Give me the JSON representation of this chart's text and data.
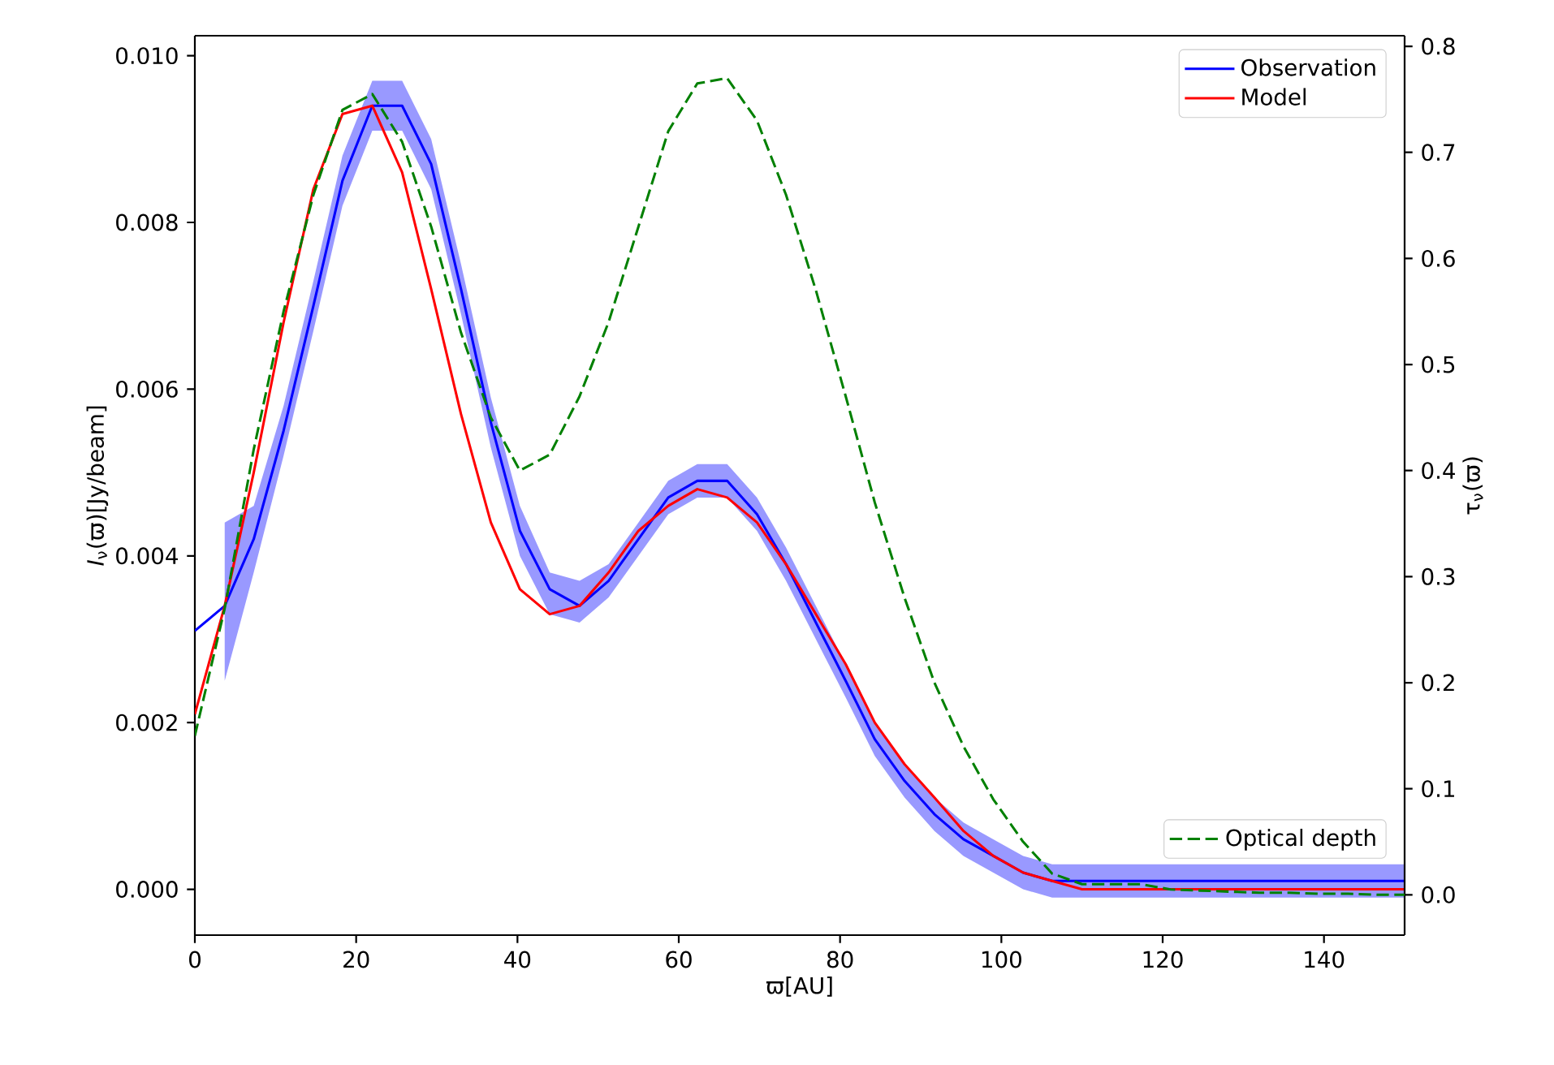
{
  "chart_data": {
    "type": "line",
    "xlabel": "ϖ[AU]",
    "ylabel": "*I*$_{ν}$(ϖ)[Jy/beam]",
    "y2label": "τ$_{ν}$(ϖ)",
    "x": [
      0,
      3.7,
      7.3,
      11,
      14.7,
      18.3,
      22,
      25.7,
      29.3,
      33,
      36.7,
      40.3,
      44,
      47.7,
      51.3,
      55,
      58.7,
      62.3,
      66,
      69.7,
      73.3,
      77,
      80.7,
      84.3,
      88,
      91.7,
      95.3,
      99,
      102.7,
      106.3,
      110,
      113.7,
      117.3,
      121,
      124.7,
      128.3,
      132,
      135.7,
      139.3,
      143,
      146.7,
      150
    ],
    "series": [
      {
        "name": "Observation",
        "color": "#0000ff",
        "line_style": "solid",
        "values": [
          0.0031,
          0.0034,
          0.0042,
          0.0055,
          0.007,
          0.0085,
          0.0094,
          0.0094,
          0.0087,
          0.0072,
          0.0056,
          0.0043,
          0.0036,
          0.0034,
          0.0037,
          0.0042,
          0.0047,
          0.0049,
          0.0049,
          0.0045,
          0.0039,
          0.0032,
          0.0025,
          0.0018,
          0.0013,
          0.0009,
          0.0006,
          0.0004,
          0.0002,
          0.0001,
          0.0001,
          0.0001,
          0.0001,
          0.0001,
          0.0001,
          0.0001,
          0.0001,
          0.0001,
          0.0001,
          0.0001,
          0.0001,
          0.0001
        ],
        "upper": [
          null,
          0.0044,
          0.0046,
          0.0058,
          0.0073,
          0.0088,
          0.0097,
          0.0097,
          0.009,
          0.0075,
          0.0059,
          0.0046,
          0.0038,
          0.0037,
          0.0039,
          0.0044,
          0.0049,
          0.0051,
          0.0051,
          0.0047,
          0.0041,
          0.0034,
          0.0027,
          0.002,
          0.0015,
          0.0011,
          0.0008,
          0.0006,
          0.0004,
          0.0003,
          0.0003,
          0.0003,
          0.0003,
          0.0003,
          0.0003,
          0.0003,
          0.0003,
          0.0003,
          0.0003,
          0.0003,
          0.0003,
          0.0003
        ],
        "lower": [
          null,
          0.0025,
          0.0038,
          0.0052,
          0.0067,
          0.0082,
          0.0091,
          0.0091,
          0.0084,
          0.0069,
          0.0053,
          0.004,
          0.0033,
          0.0032,
          0.0035,
          0.004,
          0.0045,
          0.0047,
          0.0047,
          0.0043,
          0.0037,
          0.003,
          0.0023,
          0.0016,
          0.0011,
          0.0007,
          0.0004,
          0.0002,
          0.0,
          -0.0001,
          -0.0001,
          -0.0001,
          -0.0001,
          -0.0001,
          -0.0001,
          -0.0001,
          -0.0001,
          -0.0001,
          -0.0001,
          -0.0001,
          -0.0001,
          -0.0001
        ]
      },
      {
        "name": "Model",
        "color": "#ff0000",
        "line_style": "solid",
        "values": [
          0.0021,
          0.0034,
          0.005,
          0.0068,
          0.0084,
          0.0093,
          0.0094,
          0.0086,
          0.0072,
          0.0057,
          0.0044,
          0.0036,
          0.0033,
          0.0034,
          0.0038,
          0.0043,
          0.0046,
          0.0048,
          0.0047,
          0.0044,
          0.0039,
          0.0033,
          0.0027,
          0.002,
          0.0015,
          0.0011,
          0.0007,
          0.0004,
          0.0002,
          0.0001,
          0.0,
          0.0,
          0.0,
          0.0,
          0.0,
          0.0,
          0.0,
          0.0,
          0.0,
          0.0,
          0.0,
          0.0
        ]
      },
      {
        "name": "Optical depth",
        "color": "#008000",
        "line_style": "dashed",
        "axis": "y2",
        "values": [
          0.15,
          0.27,
          0.42,
          0.55,
          0.66,
          0.74,
          0.755,
          0.71,
          0.63,
          0.53,
          0.45,
          0.4,
          0.415,
          0.47,
          0.54,
          0.63,
          0.72,
          0.765,
          0.77,
          0.73,
          0.66,
          0.57,
          0.47,
          0.37,
          0.28,
          0.2,
          0.14,
          0.09,
          0.05,
          0.02,
          0.01,
          0.01,
          0.01,
          0.005,
          0.004,
          0.003,
          0.002,
          0.002,
          0.001,
          0.001,
          0.0,
          0.0
        ]
      }
    ],
    "xlim": [
      0,
      150
    ],
    "xticks": [
      0,
      20,
      40,
      60,
      80,
      100,
      120,
      140
    ],
    "ylim": [
      -0.00055,
      0.01024
    ],
    "yticks": [
      {
        "value": 0,
        "label": "0.000"
      },
      {
        "value": 0.002,
        "label": "0.002"
      },
      {
        "value": 0.004,
        "label": "0.004"
      },
      {
        "value": 0.006,
        "label": "0.006"
      },
      {
        "value": 0.008,
        "label": "0.008"
      },
      {
        "value": 0.01,
        "label": "0.010"
      }
    ],
    "y2lim": [
      -0.038,
      0.81
    ],
    "y2ticks": [
      {
        "value": 0,
        "label": "0.0"
      },
      0.1,
      0.2,
      0.3,
      0.4,
      0.5,
      0.6,
      0.7,
      0.8
    ],
    "legend": "top right",
    "grid": false
  }
}
